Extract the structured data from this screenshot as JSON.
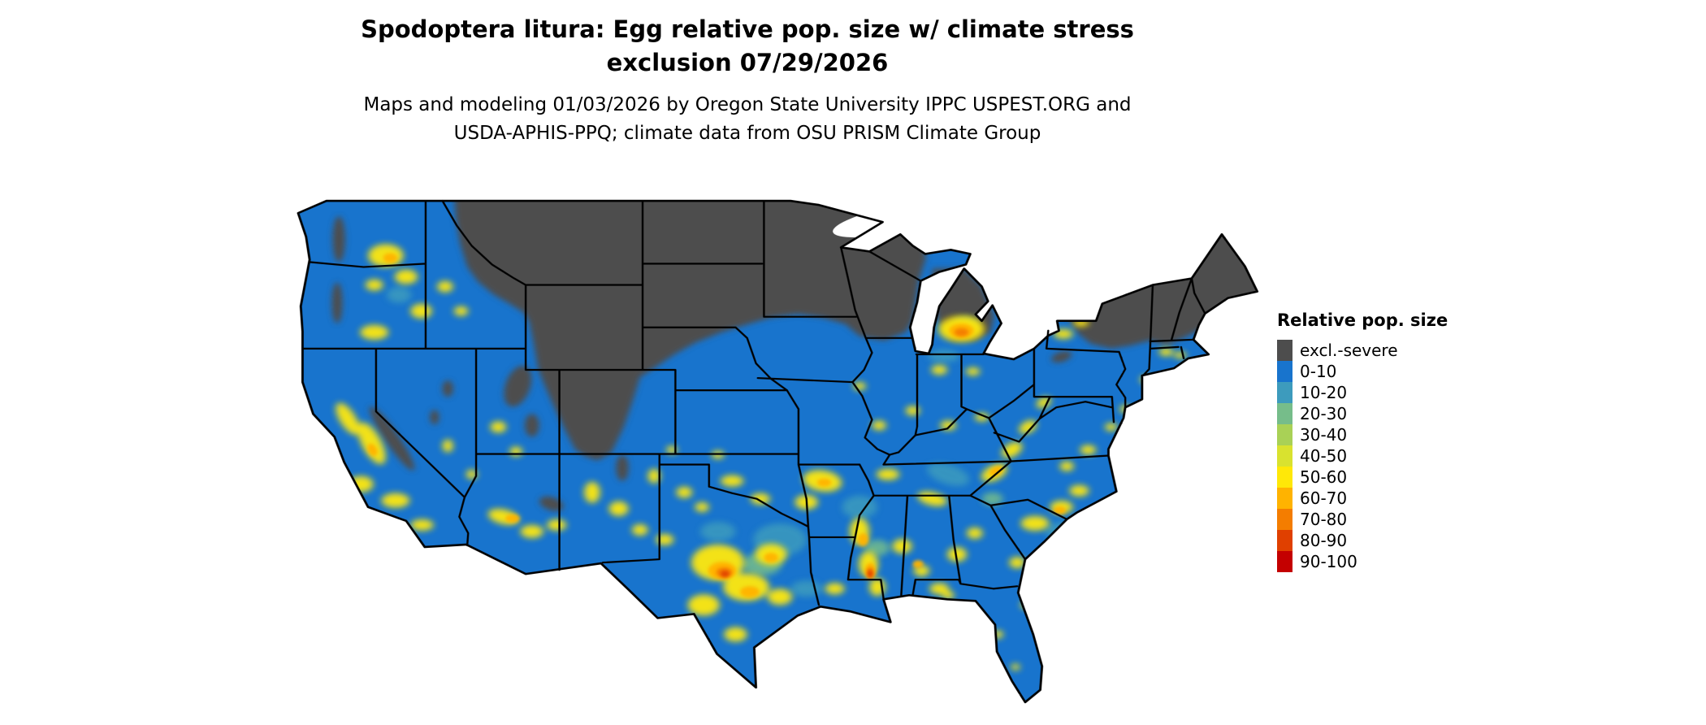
{
  "header": {
    "title_line1": "Spodoptera litura: Egg relative pop. size w/ climate stress",
    "title_line2": "exclusion 07/29/2026",
    "subtitle_line1": "Maps and modeling 01/03/2026 by Oregon State University IPPC USPEST.ORG and",
    "subtitle_line2": "USDA-APHIS-PPQ; climate data from OSU PRISM Climate Group"
  },
  "map": {
    "region": "Continental United States",
    "background_color": "#ffffff",
    "state_border_color": "#000000"
  },
  "legend": {
    "title": "Relative pop. size",
    "items": [
      {
        "label": "excl.-severe",
        "color": "#4d4d4d"
      },
      {
        "label": "0-10",
        "color": "#1874cd"
      },
      {
        "label": "10-20",
        "color": "#3d9bbd"
      },
      {
        "label": "20-30",
        "color": "#76bd8a"
      },
      {
        "label": "30-40",
        "color": "#a9d156"
      },
      {
        "label": "40-50",
        "color": "#d9e22f"
      },
      {
        "label": "50-60",
        "color": "#ffe808"
      },
      {
        "label": "60-70",
        "color": "#ffb300"
      },
      {
        "label": "70-80",
        "color": "#f47d00"
      },
      {
        "label": "80-90",
        "color": "#e04000"
      },
      {
        "label": "90-100",
        "color": "#c40000"
      }
    ]
  }
}
